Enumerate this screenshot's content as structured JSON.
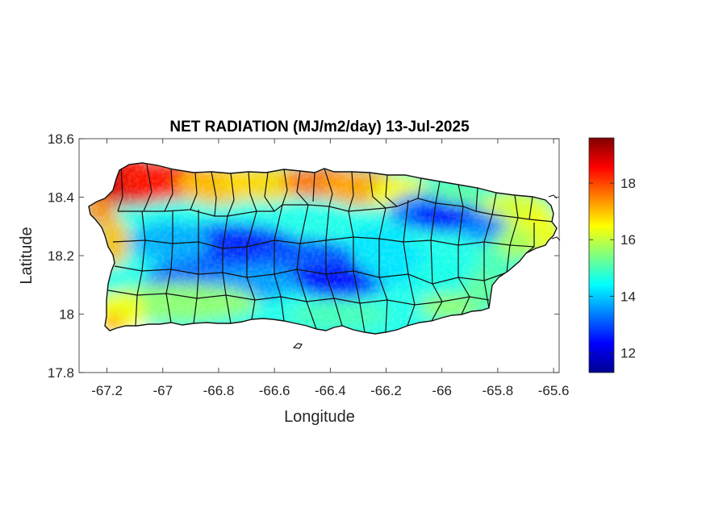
{
  "chart_data": {
    "type": "heatmap",
    "title": "NET RADIATION (MJ/m2/day) 13-Jul-2025",
    "xlabel": "Longitude",
    "ylabel": "Latitude",
    "xlim": [
      -67.3,
      -65.58
    ],
    "ylim": [
      17.8,
      18.6
    ],
    "x_ticks": [
      -67.2,
      -67.0,
      -66.8,
      -66.6,
      -66.4,
      -66.2,
      -66.0,
      -65.8,
      -65.6
    ],
    "x_tick_labels": [
      "-67.2",
      "-67",
      "-66.8",
      "-66.6",
      "-66.4",
      "-66.2",
      "-66",
      "-65.8",
      "-65.6"
    ],
    "y_ticks": [
      17.8,
      18.0,
      18.2,
      18.4,
      18.6
    ],
    "y_tick_labels": [
      "17.8",
      "18",
      "18.2",
      "18.4",
      "18.6"
    ],
    "colorbar": {
      "colormap": "jet",
      "range": [
        11.3,
        19.6
      ],
      "ticks": [
        12,
        14,
        16,
        18
      ],
      "tick_labels": [
        "12",
        "14",
        "16",
        "18"
      ]
    },
    "approx_field": [
      {
        "region": "north coast (west)",
        "value": 18.8
      },
      {
        "region": "north coast (central)",
        "value": 17.6
      },
      {
        "region": "north-east interior",
        "value": 14.2
      },
      {
        "region": "central mountains",
        "value": 12.6
      },
      {
        "region": "east (Luquillo)",
        "value": 12.8
      },
      {
        "region": "south coast",
        "value": 15.8
      },
      {
        "region": "west coast",
        "value": 17.2
      },
      {
        "region": "far east coast",
        "value": 16.0
      }
    ],
    "grid": false
  }
}
